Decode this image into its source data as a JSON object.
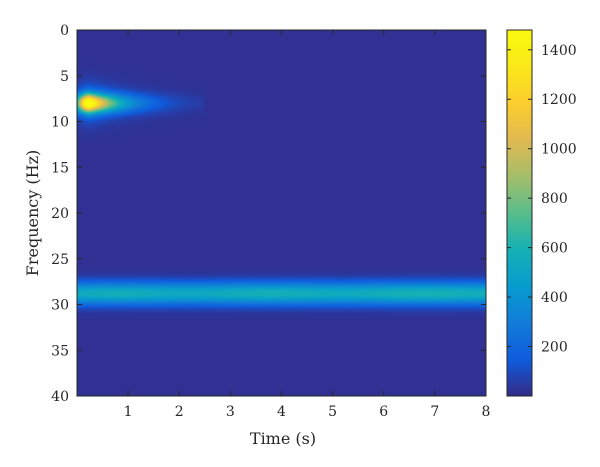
{
  "chart_data": {
    "type": "heatmap",
    "title": "",
    "xlabel": "Time (s)",
    "ylabel": "Frequency (Hz)",
    "xlim": [
      0,
      8
    ],
    "ylim": [
      0,
      40
    ],
    "y_reversed": true,
    "x_ticks": [
      1,
      2,
      3,
      4,
      5,
      6,
      7,
      8
    ],
    "y_ticks": [
      0,
      5,
      10,
      15,
      20,
      25,
      30,
      35,
      40
    ],
    "colormap": "parula",
    "colorbar": {
      "min": 0,
      "max": 1480,
      "ticks": [
        200,
        400,
        600,
        800,
        1000,
        1200,
        1400
      ]
    },
    "background_value": 20,
    "features": [
      {
        "kind": "transient",
        "freq_hz": 8,
        "time_start_s": 0,
        "time_end_s": 2.5,
        "peak_time_s": 0.25,
        "peak_value": 1480,
        "freq_halfwidth_hz": 1.0,
        "time_decay_s": 0.55
      },
      {
        "kind": "sustained",
        "freq_hz": 28.8,
        "time_start_s": 0,
        "time_end_s": 8,
        "value_at_start": 520,
        "value_at_end": 560,
        "freq_halfwidth_hz": 1.2
      }
    ]
  },
  "colors": {
    "axis": "#262626",
    "background": "#352a87"
  }
}
